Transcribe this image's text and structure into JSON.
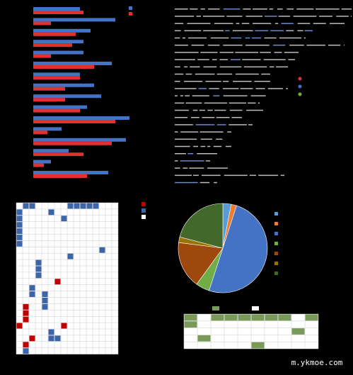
{
  "chart_data": [
    {
      "type": "bar",
      "orientation": "horizontal",
      "categories": [
        null,
        null,
        null,
        null,
        null,
        null,
        null,
        null,
        null,
        null,
        null,
        null,
        null,
        null,
        null,
        null
      ],
      "series": [
        {
          "color": "#4472c4",
          "values": [
            66,
            116,
            81,
            71,
            71,
            111,
            66,
            86,
            96,
            76,
            136,
            40,
            131,
            50,
            25,
            106
          ]
        },
        {
          "color": "#e03030",
          "values": [
            71,
            25,
            60,
            55,
            25,
            86,
            66,
            45,
            45,
            66,
            116,
            20,
            111,
            71,
            15,
            76
          ]
        }
      ],
      "xlim": [
        0,
        150
      ]
    },
    {
      "type": "pie",
      "values": [
        3,
        2,
        50,
        5,
        17,
        2,
        21
      ],
      "colors": [
        "#5b9bd5",
        "#ed7d31",
        "#4472c4",
        "#70ad47",
        "#9e480e",
        "#997300",
        "#43682b"
      ]
    }
  ],
  "watermark": "m.ykmoe.com"
}
